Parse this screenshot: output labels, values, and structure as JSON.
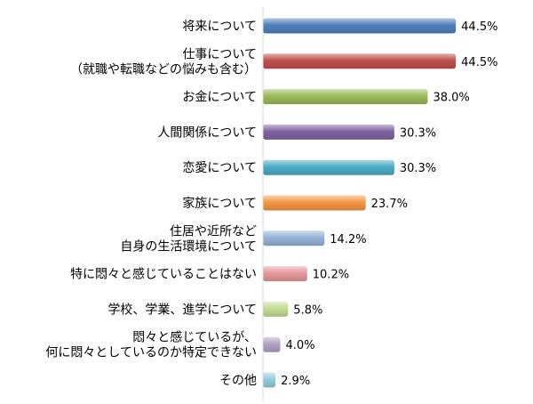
{
  "chart_data": {
    "type": "bar",
    "orientation": "horizontal",
    "categories": [
      [
        "将来について"
      ],
      [
        "仕事について",
        "（就職や転職などの悩みも含む）"
      ],
      [
        "お金について"
      ],
      [
        "人間関係について"
      ],
      [
        "恋愛について"
      ],
      [
        "家族について"
      ],
      [
        "住居や近所など",
        "自身の生活環境について"
      ],
      [
        "特に悶々と感じていることはない"
      ],
      [
        "学校、学業、進学について"
      ],
      [
        "悶々と感じているが、",
        "何に悶々としているのか特定できない"
      ],
      [
        "その他"
      ]
    ],
    "values": [
      44.5,
      44.5,
      38.0,
      30.3,
      30.3,
      23.7,
      14.2,
      10.2,
      5.8,
      4.0,
      2.9
    ],
    "value_labels": [
      "44.5%",
      "44.5%",
      "38.0%",
      "30.3%",
      "30.3%",
      "23.7%",
      "14.2%",
      "10.2%",
      "5.8%",
      "4.0%",
      "2.9%"
    ],
    "colors": [
      "#4f81bd",
      "#c0504d",
      "#9bbb59",
      "#8064a2",
      "#4bacc6",
      "#f79646",
      "#95b3d7",
      "#e6999a",
      "#c4dd92",
      "#b3a2c7",
      "#92cddc"
    ],
    "xlim": [
      0,
      50
    ],
    "grid": false,
    "legend": "none",
    "title": "",
    "xlabel": "",
    "ylabel": ""
  }
}
